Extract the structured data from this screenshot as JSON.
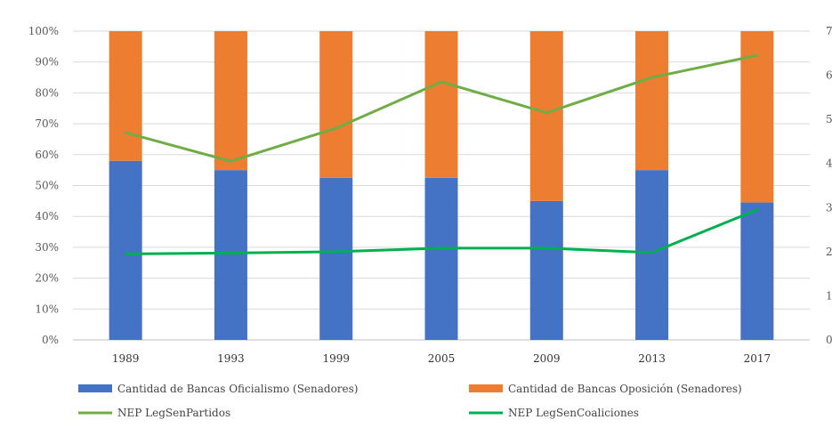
{
  "chart_data": {
    "type": "bar",
    "stacked": true,
    "categories": [
      "1989",
      "1993",
      "1999",
      "2005",
      "2009",
      "2013",
      "2017"
    ],
    "series": [
      {
        "name": "Cantidad de Bancas Oficialismo (Senadores)",
        "kind": "bar",
        "axis": "left",
        "color": "#4472C4",
        "values": [
          58,
          55,
          52.5,
          52.5,
          45,
          55,
          44.5
        ]
      },
      {
        "name": "Cantidad de Bancas Oposición (Senadores)",
        "kind": "bar",
        "axis": "left",
        "color": "#ED7D31",
        "values": [
          42,
          45,
          47.5,
          47.5,
          55,
          45,
          55.5
        ]
      },
      {
        "name": "NEP LegSenPartidos",
        "kind": "line",
        "axis": "right",
        "color": "#70AD47",
        "values": [
          4.7,
          4.05,
          4.8,
          5.85,
          5.15,
          5.95,
          6.45
        ]
      },
      {
        "name": "NEP LegSenCoaliciones",
        "kind": "line",
        "axis": "right",
        "color": "#00B050",
        "values": [
          1.95,
          1.97,
          2.0,
          2.08,
          2.08,
          1.98,
          2.95
        ]
      }
    ],
    "y_left": {
      "ticks": [
        "0%",
        "10%",
        "20%",
        "30%",
        "40%",
        "50%",
        "60%",
        "70%",
        "80%",
        "90%",
        "100%"
      ],
      "ylim": [
        0,
        100
      ]
    },
    "y_right": {
      "ticks": [
        "0",
        "1",
        "2",
        "3",
        "4",
        "5",
        "6",
        "7"
      ],
      "ylim": [
        0,
        7
      ]
    },
    "grid": true,
    "legend_position": "bottom"
  }
}
